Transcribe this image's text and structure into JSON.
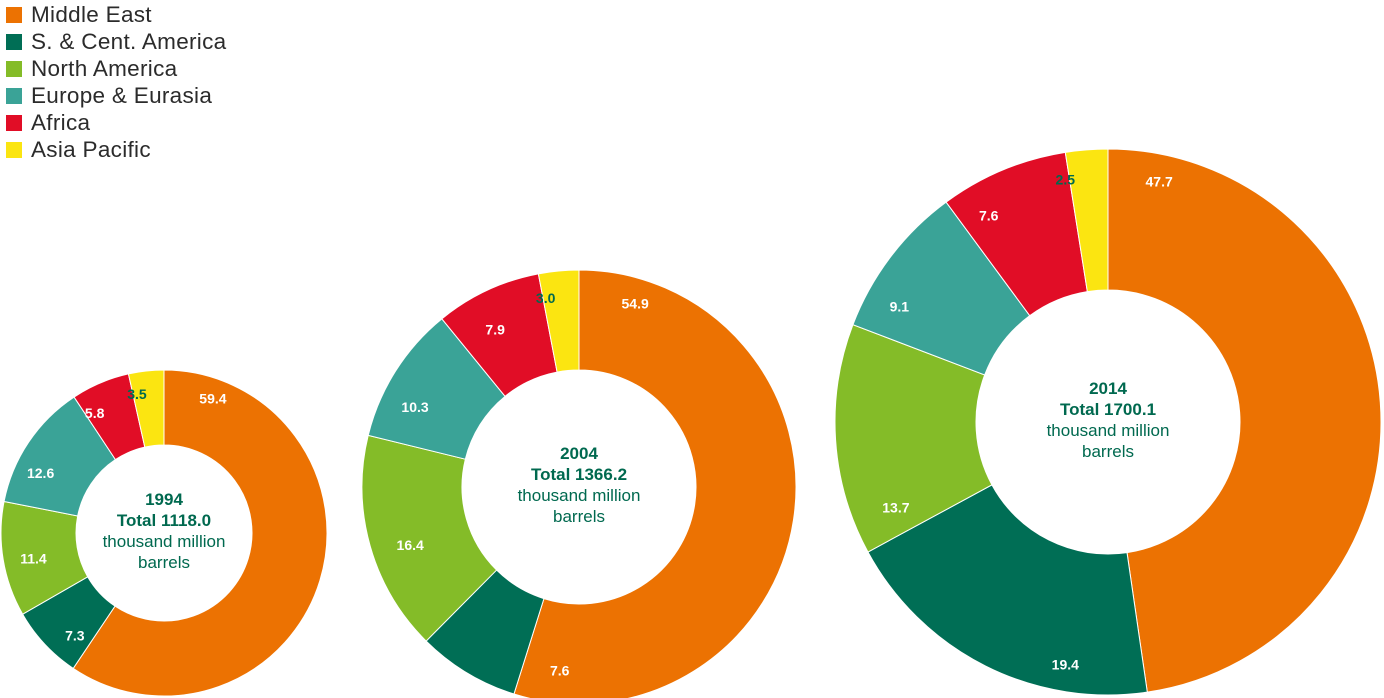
{
  "colors": {
    "text_green": "#00694f",
    "label_white": "#ffffff",
    "label_on_yellow": "#00694f"
  },
  "legend": [
    {
      "label": "Middle East",
      "color": "#ec7202"
    },
    {
      "label": "S. & Cent. America",
      "color": "#006e55"
    },
    {
      "label": "North America",
      "color": "#84bc28"
    },
    {
      "label": "Europe & Eurasia",
      "color": "#3aa397"
    },
    {
      "label": "Africa",
      "color": "#e10d26"
    },
    {
      "label": "Asia Pacific",
      "color": "#fbe511"
    }
  ],
  "chart_data": {
    "type": "pie",
    "title": "",
    "unit_label": "thousand million barrels",
    "categories": [
      "Middle East",
      "S. & Cent. America",
      "North America",
      "Europe & Eurasia",
      "Africa",
      "Asia Pacific"
    ],
    "series": [
      {
        "name": "1994",
        "year": "1994",
        "total_label": "Total 1118.0",
        "unit_line1": "thousand million",
        "unit_line2": "barrels",
        "values": [
          59.4,
          7.3,
          11.4,
          12.6,
          5.8,
          3.5
        ],
        "labels": [
          "59.4",
          "7.3",
          "11.4",
          "12.6",
          "5.8",
          "3.5"
        ]
      },
      {
        "name": "2004",
        "year": "2004",
        "total_label": "Total 1366.2",
        "unit_line1": "thousand million",
        "unit_line2": "barrels",
        "values": [
          54.9,
          7.6,
          16.4,
          10.3,
          7.9,
          3.0
        ],
        "labels": [
          "54.9",
          "7.6",
          "16.4",
          "10.3",
          "7.9",
          "3.0"
        ]
      },
      {
        "name": "2014",
        "year": "2014",
        "total_label": "Total 1700.1",
        "unit_line1": "thousand million",
        "unit_line2": "barrels",
        "values": [
          47.7,
          19.4,
          13.7,
          9.1,
          7.6,
          2.5
        ],
        "labels": [
          "47.7",
          "19.4",
          "13.7",
          "9.1",
          "7.6",
          "2.5"
        ]
      }
    ]
  }
}
